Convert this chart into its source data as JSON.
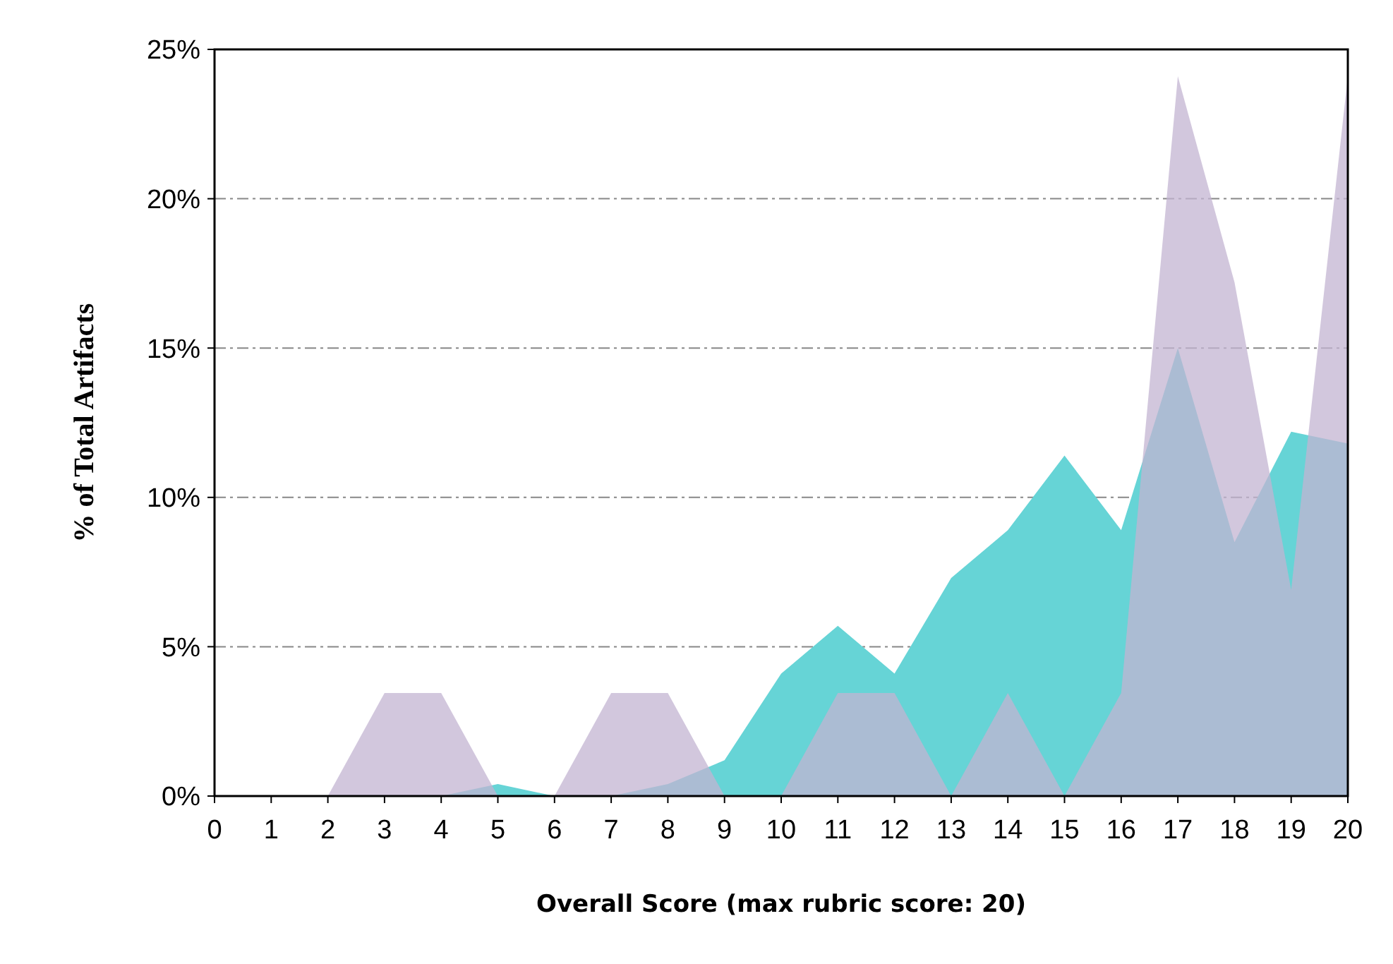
{
  "chart_data": {
    "type": "area",
    "xlabel": "Overall Score (max rubric score: 20)",
    "ylabel": "% of Total Artifacts",
    "x": [
      0,
      1,
      2,
      3,
      4,
      5,
      6,
      7,
      8,
      9,
      10,
      11,
      12,
      13,
      14,
      15,
      16,
      17,
      18,
      19,
      20
    ],
    "series": [
      {
        "color": "#66d4d6",
        "values": [
          0,
          0,
          0,
          0,
          0,
          0.4,
          0,
          0,
          0.4,
          1.2,
          4.1,
          5.7,
          4.1,
          7.3,
          8.9,
          11.4,
          8.9,
          15.0,
          8.5,
          12.2,
          11.8
        ]
      },
      {
        "color": "#c3b4d2",
        "values": [
          0,
          0,
          0,
          3.45,
          3.45,
          0,
          0,
          3.45,
          3.45,
          0,
          0,
          3.45,
          3.45,
          0,
          3.45,
          0,
          3.45,
          24.1,
          17.2,
          6.9,
          24.1
        ]
      }
    ],
    "xlim": [
      0,
      20
    ],
    "xticks": [
      0,
      1,
      2,
      3,
      4,
      5,
      6,
      7,
      8,
      9,
      10,
      11,
      12,
      13,
      14,
      15,
      16,
      17,
      18,
      19,
      20
    ],
    "ylim": [
      0,
      25
    ],
    "yticks": [
      {
        "value": 0,
        "label": "0%"
      },
      {
        "value": 5,
        "label": "5%"
      },
      {
        "value": 10,
        "label": "10%"
      },
      {
        "value": 15,
        "label": "15%"
      },
      {
        "value": 20,
        "label": "20%"
      },
      {
        "value": 25,
        "label": "25%"
      }
    ],
    "grid": "y"
  }
}
